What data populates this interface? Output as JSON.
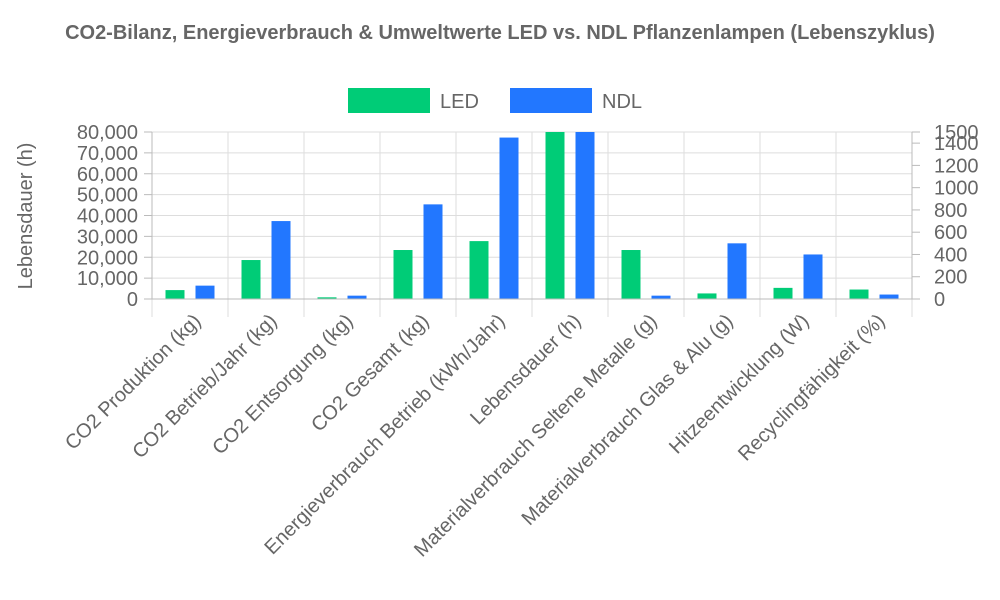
{
  "chart_data": {
    "type": "bar",
    "title": "CO2-Bilanz, Energieverbrauch & Umweltwerte LED vs. NDL Pflanzenlampen (Lebenszyklus)",
    "ylabel": "Lebensdauer (h)",
    "ylim": [
      0,
      80000
    ],
    "y2lim": [
      0,
      1500
    ],
    "y_ticks": [
      "0",
      "10,000",
      "20,000",
      "30,000",
      "40,000",
      "50,000",
      "60,000",
      "70,000",
      "80,000"
    ],
    "y2_ticks": [
      "0",
      "200",
      "400",
      "600",
      "800",
      "1000",
      "1200",
      "1400",
      "1500"
    ],
    "legend_position": "top",
    "grid": true,
    "categories": [
      "CO2 Produktion (kg)",
      "CO2 Betrieb/Jahr (kg)",
      "CO2 Entsorgung (kg)",
      "CO2 Gesamt (kg)",
      "Energieverbrauch Betrieb (kWh/Jahr)",
      "Lebensdauer (h)",
      "Materialverbrauch Seltene Metalle (g)",
      "Materialverbrauch Glas & Alu (g)",
      "Hitzeentwicklung (W)",
      "Recyclingfähigkeit (%)"
    ],
    "series": [
      {
        "name": "LED",
        "color": "#00cc77",
        "axis": "right",
        "values": [
          80,
          350,
          15,
          440,
          520,
          1500,
          440,
          50,
          100,
          85
        ]
      },
      {
        "name": "NDL",
        "color": "#2277ff",
        "axis": "right",
        "values": [
          120,
          700,
          30,
          850,
          1450,
          1500,
          30,
          500,
          400,
          40
        ]
      }
    ]
  }
}
